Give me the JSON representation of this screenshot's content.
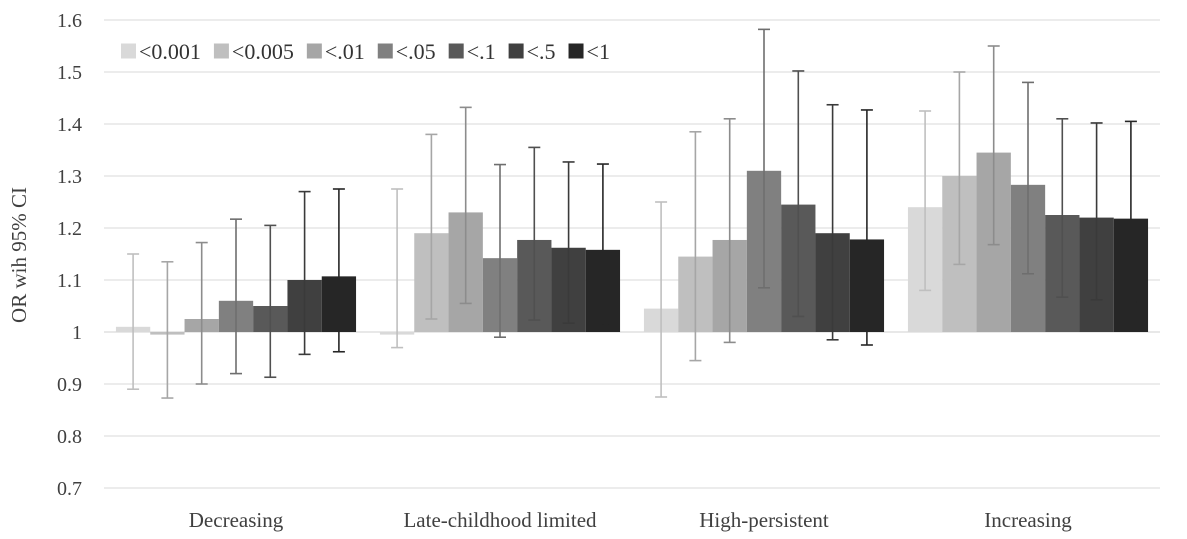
{
  "chart_data": {
    "type": "bar",
    "title": "",
    "xlabel": "",
    "ylabel": "OR wih 95% CI",
    "ylim": [
      0.7,
      1.6
    ],
    "yticks": [
      "0.7",
      "0.8",
      "0.9",
      "1",
      "1.1",
      "1.2",
      "1.3",
      "1.4",
      "1.5",
      "1.6"
    ],
    "baseline": 1,
    "grid": true,
    "legend_position": "top-left",
    "categories": [
      "Decreasing",
      "Late-childhood limited",
      "High-persistent",
      "Increasing"
    ],
    "series": [
      {
        "name": "<0.001",
        "color": "#d9d9d9",
        "err_color": "#bfbfbf",
        "values": [
          1.01,
          0.995,
          1.045,
          1.24
        ],
        "lower": [
          0.89,
          0.97,
          0.875,
          1.08
        ],
        "upper": [
          1.15,
          1.275,
          1.25,
          1.425
        ]
      },
      {
        "name": "<0.005",
        "color": "#bfbfbf",
        "err_color": "#a6a6a6",
        "values": [
          0.995,
          1.19,
          1.145,
          1.3
        ],
        "lower": [
          0.873,
          1.025,
          0.945,
          1.13
        ],
        "upper": [
          1.135,
          1.38,
          1.385,
          1.5
        ]
      },
      {
        "name": "<.01",
        "color": "#a6a6a6",
        "err_color": "#8c8c8c",
        "values": [
          1.025,
          1.23,
          1.177,
          1.345
        ],
        "lower": [
          0.9,
          1.055,
          0.98,
          1.168
        ],
        "upper": [
          1.172,
          1.432,
          1.41,
          1.55
        ]
      },
      {
        "name": "<.05",
        "color": "#808080",
        "err_color": "#6e6e6e",
        "values": [
          1.06,
          1.142,
          1.31,
          1.283
        ],
        "lower": [
          0.92,
          0.99,
          1.085,
          1.112
        ],
        "upper": [
          1.217,
          1.322,
          1.582,
          1.48
        ]
      },
      {
        "name": "<.1",
        "color": "#595959",
        "err_color": "#505050",
        "values": [
          1.05,
          1.177,
          1.245,
          1.225
        ],
        "lower": [
          0.913,
          1.023,
          1.03,
          1.067
        ],
        "upper": [
          1.205,
          1.355,
          1.502,
          1.41
        ]
      },
      {
        "name": "<.5",
        "color": "#404040",
        "err_color": "#3a3a3a",
        "values": [
          1.1,
          1.162,
          1.19,
          1.22
        ],
        "lower": [
          0.957,
          1.017,
          0.985,
          1.062
        ],
        "upper": [
          1.27,
          1.327,
          1.437,
          1.402
        ]
      },
      {
        "name": "<1",
        "color": "#262626",
        "err_color": "#262626",
        "values": [
          1.107,
          1.158,
          1.178,
          1.218
        ],
        "lower": [
          0.962,
          1.013,
          0.975,
          1.058
        ],
        "upper": [
          1.275,
          1.323,
          1.427,
          1.405
        ]
      }
    ]
  }
}
